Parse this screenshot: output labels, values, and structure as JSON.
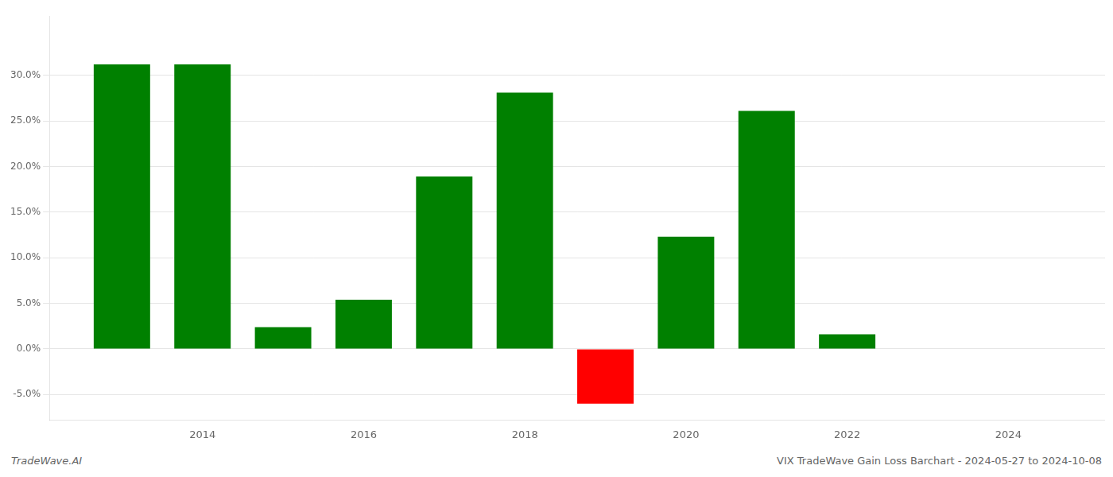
{
  "chart_data": {
    "type": "bar",
    "x": [
      2013,
      2014,
      2015,
      2016,
      2017,
      2018,
      2019,
      2020,
      2021,
      2022,
      2023
    ],
    "values": [
      0.312,
      0.312,
      0.024,
      0.054,
      0.189,
      0.281,
      -0.06,
      0.123,
      0.261,
      0.016,
      0.0
    ],
    "colors": [
      "#008000",
      "#008000",
      "#008000",
      "#008000",
      "#008000",
      "#008000",
      "#ff0000",
      "#008000",
      "#008000",
      "#008000",
      "#008000"
    ],
    "xlim": [
      2012.1,
      2025.2
    ],
    "xticks": [
      2014,
      2016,
      2018,
      2020,
      2022,
      2024
    ],
    "ylim": [
      -0.078,
      0.365
    ],
    "yticks": [
      {
        "value": -0.05,
        "label": "-5.0%"
      },
      {
        "value": 0.0,
        "label": "0.0%"
      },
      {
        "value": 0.05,
        "label": "5.0%"
      },
      {
        "value": 0.1,
        "label": "10.0%"
      },
      {
        "value": 0.15,
        "label": "15.0%"
      },
      {
        "value": 0.2,
        "label": "20.0%"
      },
      {
        "value": 0.25,
        "label": "25.0%"
      },
      {
        "value": 0.3,
        "label": "30.0%"
      }
    ],
    "grid": "y",
    "annotations": [
      "TradeWave.AI",
      "VIX TradeWave Gain Loss Barchart - 2024-05-27 to 2024-10-08"
    ]
  }
}
